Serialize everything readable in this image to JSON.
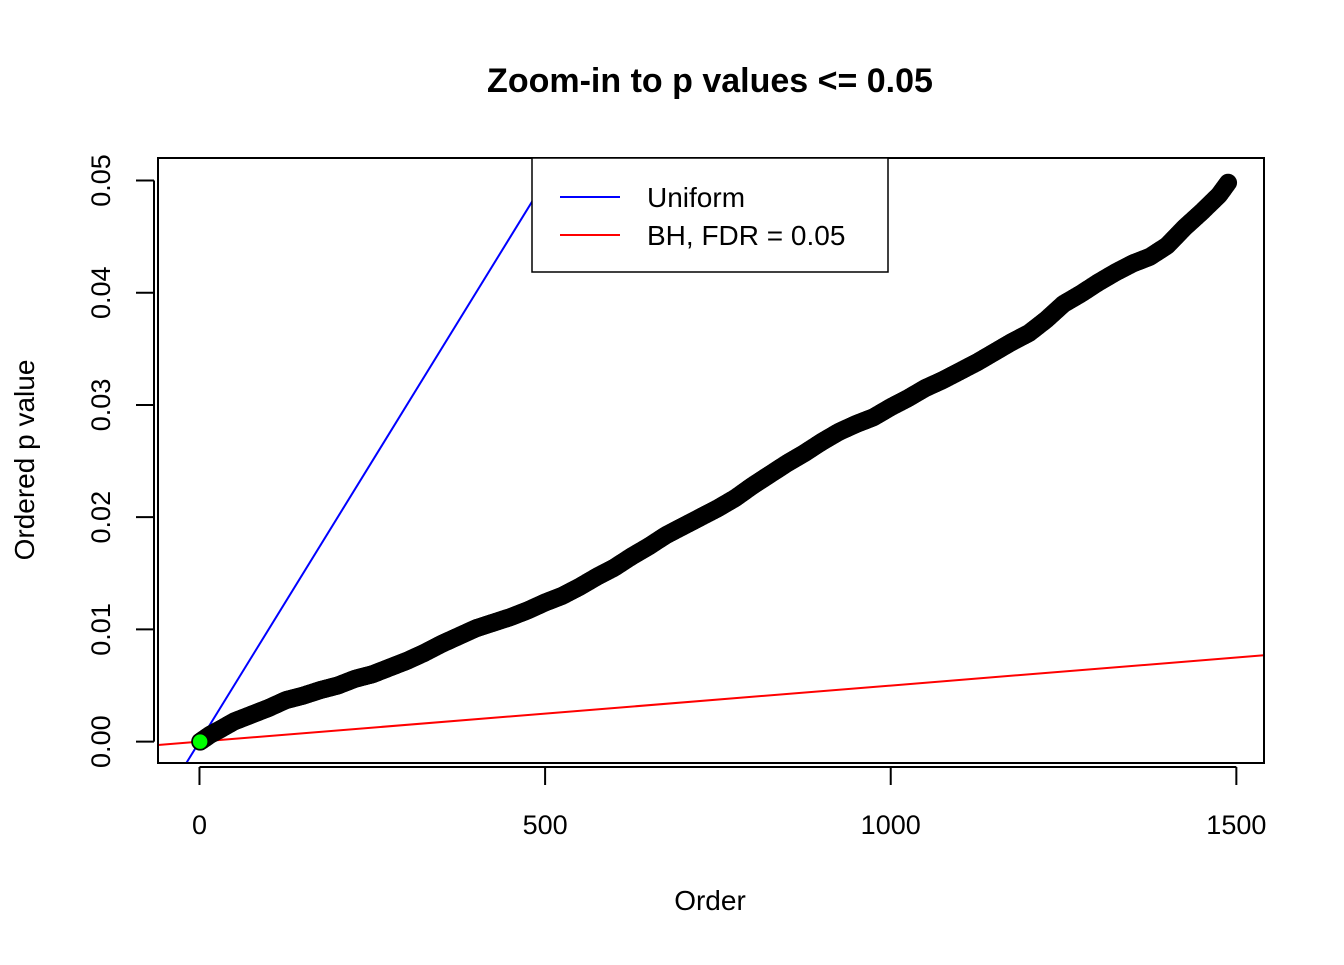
{
  "chart_data": {
    "type": "scatter",
    "title": "Zoom-in to p values <= 0.05",
    "xlabel": "Order",
    "ylabel": "Ordered p value",
    "xlim": [
      -60,
      1540
    ],
    "ylim": [
      -0.0019,
      0.052
    ],
    "x_ticks": [
      0,
      500,
      1000,
      1500
    ],
    "x_tick_labels": [
      "0",
      "500",
      "1000",
      "1500"
    ],
    "y_ticks": [
      0.0,
      0.01,
      0.02,
      0.03,
      0.04,
      0.05
    ],
    "y_tick_labels": [
      "0.00",
      "0.01",
      "0.02",
      "0.03",
      "0.04",
      "0.05"
    ],
    "grid": false,
    "legend": {
      "placement": "top",
      "entries": [
        {
          "label": "Uniform",
          "color": "#0000ff"
        },
        {
          "label": "BH, FDR = 0.05",
          "color": "#ff0000"
        }
      ]
    },
    "lines": [
      {
        "name": "Uniform",
        "color": "#0000ff",
        "intercept": 0,
        "slope": 0.0001
      },
      {
        "name": "BH, FDR = 0.05",
        "color": "#ff0000",
        "intercept": 0,
        "slope": 5e-06
      }
    ],
    "series": [
      {
        "name": "Ordered p values",
        "color": "#000000",
        "points": [
          [
            1,
            0.0
          ],
          [
            15,
            0.0006
          ],
          [
            30,
            0.0011
          ],
          [
            50,
            0.0018
          ],
          [
            75,
            0.0024
          ],
          [
            100,
            0.003
          ],
          [
            125,
            0.0037
          ],
          [
            150,
            0.0041
          ],
          [
            175,
            0.0046
          ],
          [
            200,
            0.005
          ],
          [
            225,
            0.0056
          ],
          [
            250,
            0.006
          ],
          [
            275,
            0.0066
          ],
          [
            300,
            0.0072
          ],
          [
            325,
            0.0079
          ],
          [
            350,
            0.0087
          ],
          [
            375,
            0.0094
          ],
          [
            400,
            0.0101
          ],
          [
            425,
            0.0106
          ],
          [
            450,
            0.0111
          ],
          [
            475,
            0.0117
          ],
          [
            500,
            0.0124
          ],
          [
            525,
            0.013
          ],
          [
            550,
            0.0138
          ],
          [
            575,
            0.0147
          ],
          [
            600,
            0.0155
          ],
          [
            625,
            0.0165
          ],
          [
            650,
            0.0174
          ],
          [
            675,
            0.0184
          ],
          [
            700,
            0.0192
          ],
          [
            725,
            0.02
          ],
          [
            750,
            0.0208
          ],
          [
            775,
            0.0217
          ],
          [
            800,
            0.0228
          ],
          [
            825,
            0.0238
          ],
          [
            850,
            0.0248
          ],
          [
            875,
            0.0257
          ],
          [
            900,
            0.0267
          ],
          [
            925,
            0.0276
          ],
          [
            950,
            0.0283
          ],
          [
            975,
            0.0289
          ],
          [
            1000,
            0.0298
          ],
          [
            1025,
            0.0306
          ],
          [
            1050,
            0.0315
          ],
          [
            1075,
            0.0322
          ],
          [
            1100,
            0.033
          ],
          [
            1125,
            0.0338
          ],
          [
            1150,
            0.0347
          ],
          [
            1175,
            0.0356
          ],
          [
            1200,
            0.0364
          ],
          [
            1225,
            0.0376
          ],
          [
            1250,
            0.039
          ],
          [
            1275,
            0.0399
          ],
          [
            1300,
            0.0409
          ],
          [
            1325,
            0.0418
          ],
          [
            1350,
            0.0426
          ],
          [
            1375,
            0.0432
          ],
          [
            1400,
            0.0442
          ],
          [
            1425,
            0.0458
          ],
          [
            1450,
            0.0472
          ],
          [
            1475,
            0.0487
          ],
          [
            1488,
            0.0498
          ]
        ]
      },
      {
        "name": "First point (highlighted)",
        "color": "#00ff00",
        "points": [
          [
            1,
            0.0
          ]
        ]
      }
    ]
  }
}
